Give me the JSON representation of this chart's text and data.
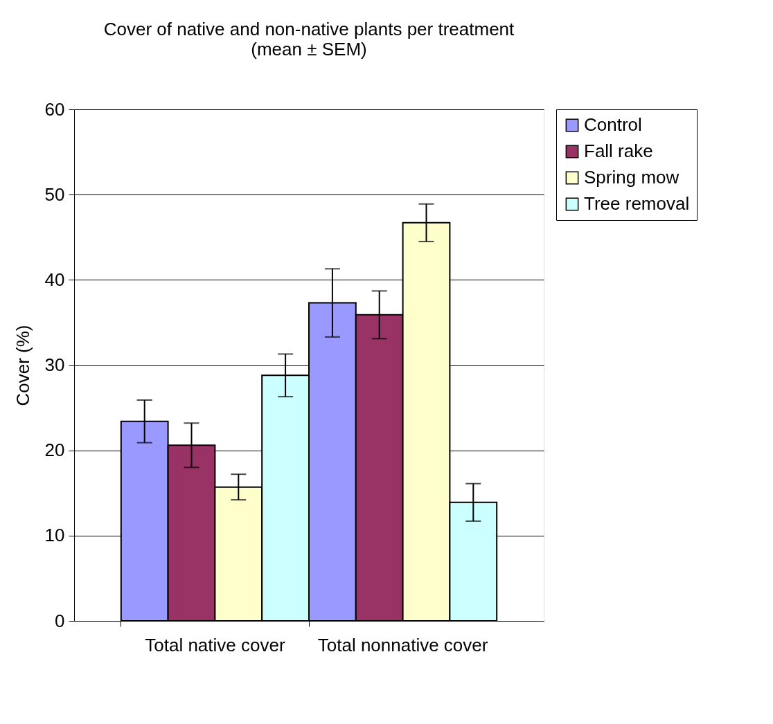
{
  "chart_data": {
    "type": "bar",
    "title": "Cover of native and non-native plants per treatment",
    "subtitle": "(mean ± SEM)",
    "ylabel": "Cover (%)",
    "categories": [
      "Total native cover",
      "Total nonnative cover"
    ],
    "series": [
      {
        "name": "Control",
        "color": "#9999ff",
        "values": [
          23.4,
          37.3
        ],
        "errors": [
          2.5,
          4.0
        ]
      },
      {
        "name": "Fall rake",
        "color": "#993366",
        "values": [
          20.6,
          35.9
        ],
        "errors": [
          2.6,
          2.8
        ]
      },
      {
        "name": "Spring mow",
        "color": "#ffffcc",
        "values": [
          15.7,
          46.7
        ],
        "errors": [
          1.5,
          2.2
        ]
      },
      {
        "name": "Tree removal",
        "color": "#ccffff",
        "values": [
          28.8,
          13.9
        ],
        "errors": [
          2.5,
          2.2
        ]
      }
    ],
    "ylim": [
      0,
      60
    ],
    "yticks": [
      0,
      10,
      20,
      30,
      40,
      50,
      60
    ],
    "grid": "y",
    "legend": "right"
  }
}
